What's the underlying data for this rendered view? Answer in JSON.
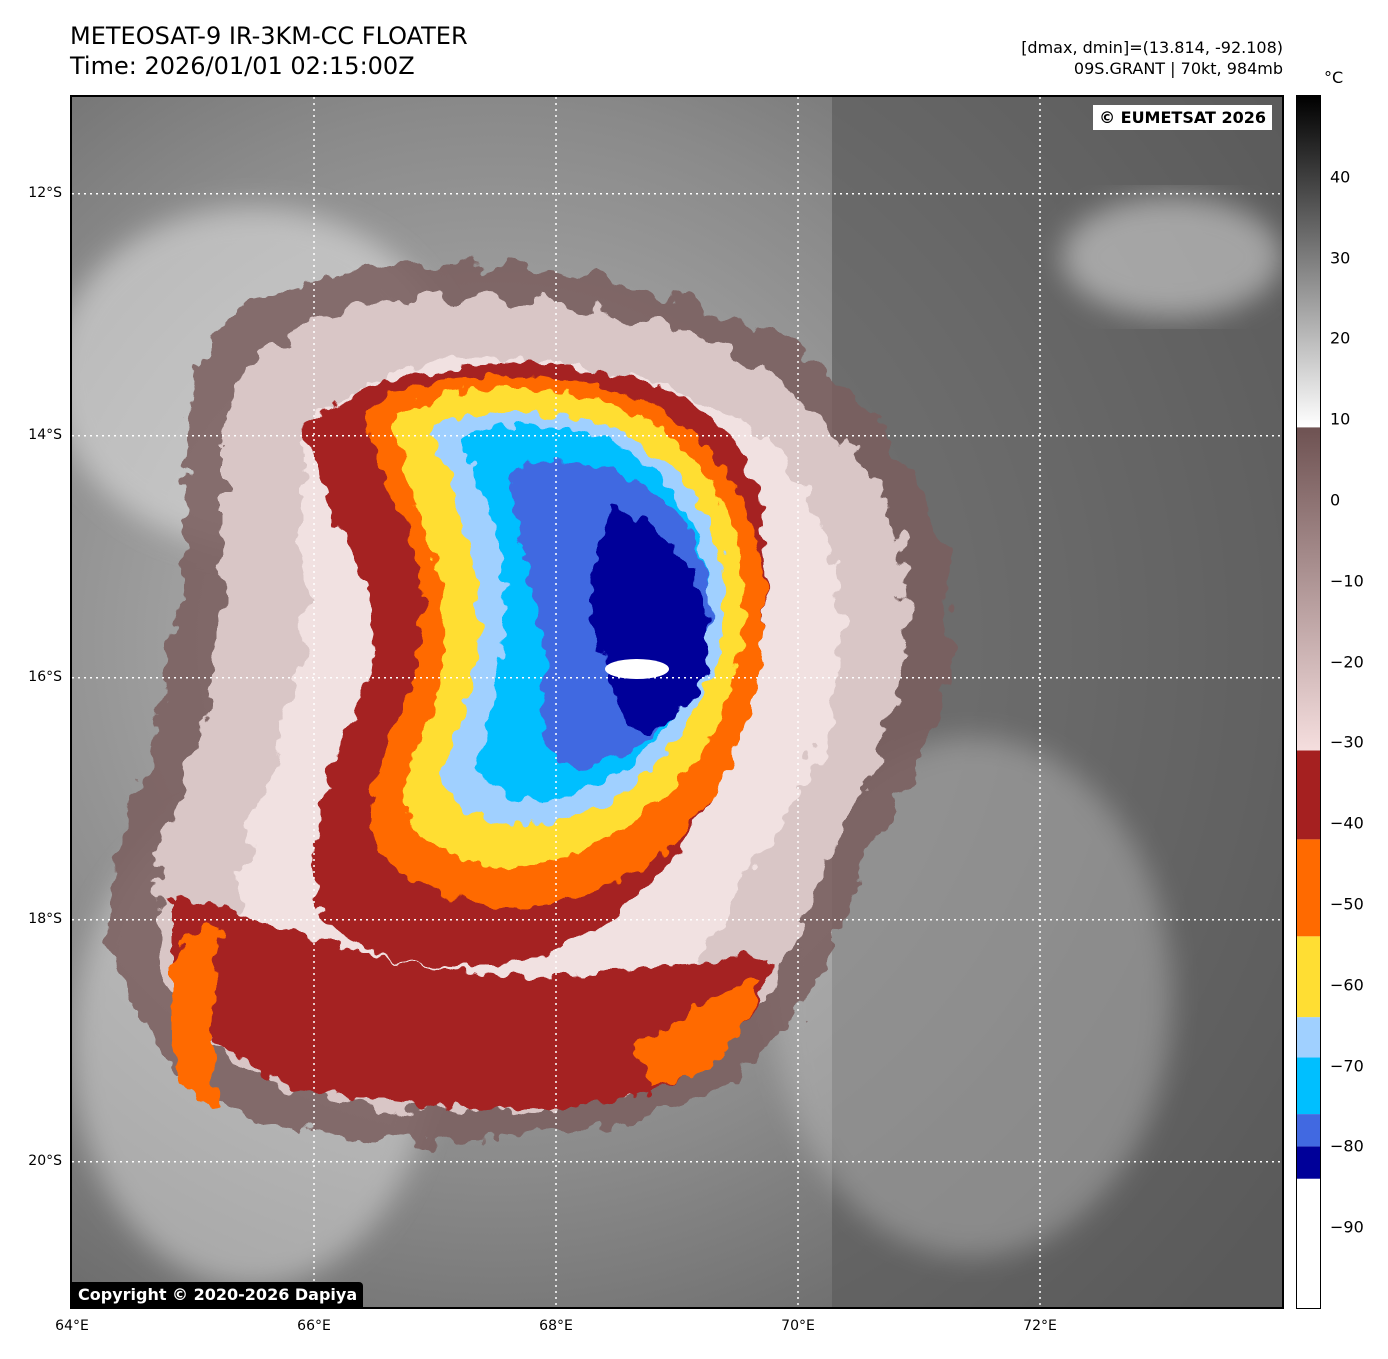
{
  "header": {
    "title_line1": "METEOSAT-9 IR-3KM-CC FLOATER",
    "title_line2": "Time: 2026/01/01 02:15:00Z",
    "info_line1": "[dmax, dmin]=(13.814, -92.108)",
    "info_line2": "09S.GRANT | 70kt, 984mb"
  },
  "credits": {
    "eumetsat": "© EUMETSAT 2026",
    "dapiya": "Copyright © 2020-2026 Dapiya"
  },
  "map": {
    "lat_labels": [
      "12°S",
      "14°S",
      "16°S",
      "18°S",
      "20°S"
    ],
    "lon_labels": [
      "64°E",
      "66°E",
      "68°E",
      "70°E",
      "72°E"
    ],
    "lat_values": [
      -12,
      -14,
      -16,
      -18,
      -20
    ],
    "lon_values": [
      64,
      66,
      68,
      70,
      72
    ],
    "extent": {
      "lon_min": 64,
      "lon_max": 74,
      "lat_min": -21.2,
      "lat_max": -11.2
    },
    "storm_center": {
      "lon": 68.6,
      "lat": -16.0
    }
  },
  "colorbar": {
    "unit": "°C",
    "ticks": [
      "40",
      "30",
      "20",
      "10",
      "0",
      "−10",
      "−20",
      "−30",
      "−40",
      "−50",
      "−60",
      "−70",
      "−80",
      "−90"
    ],
    "tick_values": [
      40,
      30,
      20,
      10,
      0,
      -10,
      -20,
      -30,
      -40,
      -50,
      -60,
      -70,
      -80,
      -90
    ],
    "range": [
      -100,
      50
    ],
    "segments": [
      {
        "from": -100,
        "to": -84,
        "color": "#ffffff"
      },
      {
        "from": -84,
        "to": -80,
        "color": "#000099"
      },
      {
        "from": -80,
        "to": -76,
        "color": "#4169e1"
      },
      {
        "from": -76,
        "to": -69,
        "color": "#00bfff"
      },
      {
        "from": -69,
        "to": -64,
        "color": "#a0d0ff"
      },
      {
        "from": -64,
        "to": -54,
        "color": "#ffde33"
      },
      {
        "from": -54,
        "to": -42,
        "color": "#ff6a00"
      },
      {
        "from": -42,
        "to": -31,
        "color": "#a52020"
      }
    ],
    "gradients": [
      {
        "from": -31,
        "to": 9,
        "color_from": "#f5dede",
        "color_to": "#6e5252"
      },
      {
        "from": 9,
        "to": 50,
        "color_from": "#ffffff",
        "color_to": "#000000"
      }
    ]
  }
}
